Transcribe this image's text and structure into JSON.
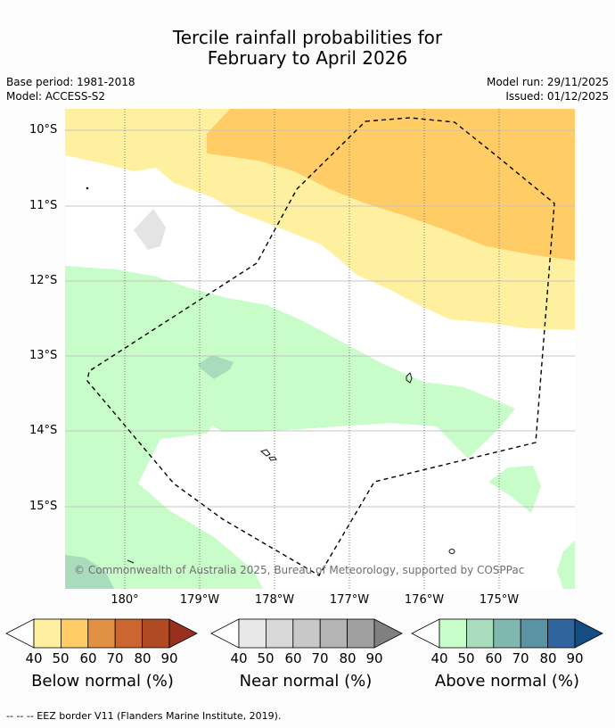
{
  "title_line1": "Tercile rainfall probabilities for",
  "title_line2": "February to April 2026",
  "base_period": "Base period: 1981-2018",
  "model": "Model: ACCESS-S2",
  "model_run": "Model run: 29/11/2025",
  "issued": "Issued: 01/12/2025",
  "latitudes": [
    "10°S",
    "11°S",
    "12°S",
    "13°S",
    "14°S",
    "15°S"
  ],
  "longitudes": [
    "180°",
    "179°W",
    "178°W",
    "177°W",
    "176°W",
    "175°W"
  ],
  "copyright": "© Commonwealth of Australia 2025, Bureau of Meteorology, supported by COSPPac",
  "colorbars": [
    {
      "title": "Below normal (%)",
      "ticks": [
        "40",
        "50",
        "60",
        "70",
        "80",
        "90"
      ],
      "colors": [
        "#fff0a0",
        "#ffcc66",
        "#e09144",
        "#cc6630",
        "#b04a25",
        "#983020"
      ]
    },
    {
      "title": "Near normal (%)",
      "ticks": [
        "40",
        "50",
        "60",
        "70",
        "80",
        "90"
      ],
      "colors": [
        "#e8e8e8",
        "#d8d8d8",
        "#c8c8c8",
        "#b4b4b4",
        "#a0a0a0",
        "#808080"
      ]
    },
    {
      "title": "Above normal (%)",
      "ticks": [
        "40",
        "50",
        "60",
        "70",
        "80",
        "90"
      ],
      "colors": [
        "#c8fcc8",
        "#a8dcbc",
        "#80b8b0",
        "#5a94a4",
        "#30649c",
        "#144c84"
      ]
    }
  ],
  "footer": "--  --  -- EEZ border V11 (Flanders Marine Institute, 2019)."
}
